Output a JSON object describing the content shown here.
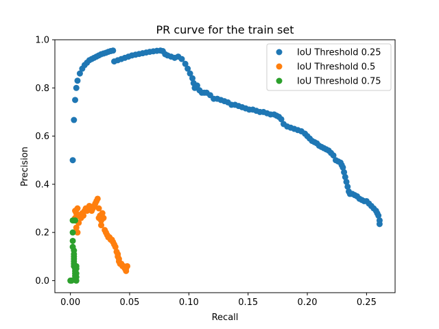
{
  "chart_data": {
    "type": "scatter",
    "title": "PR curve for the train set",
    "xlabel": "Recall",
    "ylabel": "Precision",
    "xlim": [
      -0.0131,
      0.2741
    ],
    "ylim": [
      -0.05,
      1.0
    ],
    "xticks": [
      "0.00",
      "0.05",
      "0.10",
      "0.15",
      "0.20",
      "0.25"
    ],
    "yticks": [
      "0.0",
      "0.2",
      "0.4",
      "0.6",
      "0.8",
      "1.0"
    ],
    "xtick_values": [
      0.0,
      0.05,
      0.1,
      0.15,
      0.2,
      0.25
    ],
    "ytick_values": [
      0.0,
      0.2,
      0.4,
      0.6,
      0.8,
      1.0
    ],
    "grid": false,
    "legend_position": "top-right",
    "series": [
      {
        "name": "IoU Threshold 0.25",
        "color": "#1f77b4",
        "x": [
          0.002,
          0.003,
          0.004,
          0.005,
          0.006,
          0.008,
          0.01,
          0.012,
          0.014,
          0.016,
          0.018,
          0.02,
          0.022,
          0.024,
          0.026,
          0.028,
          0.03,
          0.032,
          0.034,
          0.036,
          0.037,
          0.04,
          0.043,
          0.046,
          0.049,
          0.052,
          0.055,
          0.058,
          0.061,
          0.064,
          0.067,
          0.07,
          0.073,
          0.076,
          0.078,
          0.08,
          0.082,
          0.085,
          0.088,
          0.091,
          0.094,
          0.097,
          0.099,
          0.101,
          0.103,
          0.104,
          0.105,
          0.107,
          0.109,
          0.111,
          0.113,
          0.115,
          0.118,
          0.121,
          0.124,
          0.127,
          0.13,
          0.133,
          0.136,
          0.139,
          0.142,
          0.145,
          0.148,
          0.151,
          0.154,
          0.157,
          0.16,
          0.163,
          0.166,
          0.169,
          0.172,
          0.174,
          0.176,
          0.178,
          0.18,
          0.183,
          0.186,
          0.189,
          0.192,
          0.195,
          0.198,
          0.2,
          0.202,
          0.204,
          0.206,
          0.208,
          0.21,
          0.212,
          0.214,
          0.216,
          0.218,
          0.22,
          0.222,
          0.224,
          0.226,
          0.228,
          0.229,
          0.23,
          0.231,
          0.232,
          0.233,
          0.234,
          0.235,
          0.236,
          0.238,
          0.24,
          0.242,
          0.244,
          0.246,
          0.248,
          0.25,
          0.252,
          0.254,
          0.256,
          0.258,
          0.259,
          0.26,
          0.261,
          0.261
        ],
        "y": [
          0.5,
          0.667,
          0.75,
          0.8,
          0.83,
          0.86,
          0.88,
          0.895,
          0.905,
          0.915,
          0.92,
          0.925,
          0.93,
          0.935,
          0.94,
          0.943,
          0.946,
          0.95,
          0.953,
          0.955,
          0.91,
          0.915,
          0.92,
          0.925,
          0.93,
          0.935,
          0.938,
          0.941,
          0.944,
          0.947,
          0.95,
          0.952,
          0.954,
          0.955,
          0.953,
          0.94,
          0.935,
          0.93,
          0.925,
          0.93,
          0.92,
          0.9,
          0.88,
          0.86,
          0.84,
          0.82,
          0.8,
          0.81,
          0.79,
          0.78,
          0.78,
          0.78,
          0.77,
          0.755,
          0.755,
          0.75,
          0.745,
          0.74,
          0.73,
          0.73,
          0.725,
          0.72,
          0.715,
          0.71,
          0.71,
          0.705,
          0.7,
          0.7,
          0.695,
          0.69,
          0.69,
          0.685,
          0.68,
          0.67,
          0.65,
          0.64,
          0.635,
          0.63,
          0.625,
          0.62,
          0.61,
          0.6,
          0.59,
          0.58,
          0.575,
          0.57,
          0.56,
          0.555,
          0.55,
          0.545,
          0.54,
          0.53,
          0.52,
          0.5,
          0.495,
          0.49,
          0.48,
          0.47,
          0.45,
          0.43,
          0.41,
          0.39,
          0.37,
          0.36,
          0.36,
          0.355,
          0.35,
          0.34,
          0.335,
          0.33,
          0.33,
          0.32,
          0.31,
          0.3,
          0.29,
          0.28,
          0.27,
          0.25,
          0.235
        ]
      },
      {
        "name": "IoU Threshold 0.5",
        "color": "#ff7f0e",
        "x": [
          0.003,
          0.004,
          0.005,
          0.006,
          0.007,
          0.008,
          0.009,
          0.01,
          0.011,
          0.012,
          0.013,
          0.014,
          0.015,
          0.016,
          0.017,
          0.018,
          0.019,
          0.02,
          0.021,
          0.022,
          0.023,
          0.024,
          0.025,
          0.026,
          0.027,
          0.028,
          0.029,
          0.03,
          0.031,
          0.032,
          0.033,
          0.034,
          0.035,
          0.036,
          0.037,
          0.038,
          0.039,
          0.04,
          0.041,
          0.042,
          0.043,
          0.044,
          0.045,
          0.046,
          0.047,
          0.048,
          0.004,
          0.005,
          0.006,
          0.024,
          0.026,
          0.04,
          0.041,
          0.042,
          0.047
        ],
        "y": [
          0.25,
          0.26,
          0.22,
          0.2,
          0.24,
          0.27,
          0.26,
          0.28,
          0.27,
          0.29,
          0.3,
          0.29,
          0.3,
          0.31,
          0.3,
          0.29,
          0.3,
          0.31,
          0.32,
          0.33,
          0.34,
          0.3,
          0.27,
          0.25,
          0.28,
          0.26,
          0.21,
          0.2,
          0.19,
          0.18,
          0.18,
          0.17,
          0.17,
          0.16,
          0.15,
          0.14,
          0.12,
          0.1,
          0.08,
          0.07,
          0.07,
          0.06,
          0.06,
          0.05,
          0.05,
          0.06,
          0.29,
          0.28,
          0.3,
          0.26,
          0.23,
          0.11,
          0.09,
          0.07,
          0.04
        ]
      },
      {
        "name": "IoU Threshold 0.75",
        "color": "#2ca02c",
        "x": [
          0.0,
          0.001,
          0.002,
          0.002,
          0.002,
          0.002,
          0.003,
          0.003,
          0.003,
          0.003,
          0.003,
          0.003,
          0.003,
          0.004,
          0.004,
          0.004,
          0.004,
          0.004,
          0.004,
          0.005,
          0.005,
          0.005,
          0.005,
          0.005
        ],
        "y": [
          0.0,
          0.0,
          0.25,
          0.2,
          0.165,
          0.14,
          0.125,
          0.11,
          0.1,
          0.09,
          0.08,
          0.07,
          0.06,
          0.05,
          0.04,
          0.03,
          0.02,
          0.01,
          0.25,
          0.06,
          0.05,
          0.03,
          0.015,
          0.0
        ]
      }
    ]
  }
}
